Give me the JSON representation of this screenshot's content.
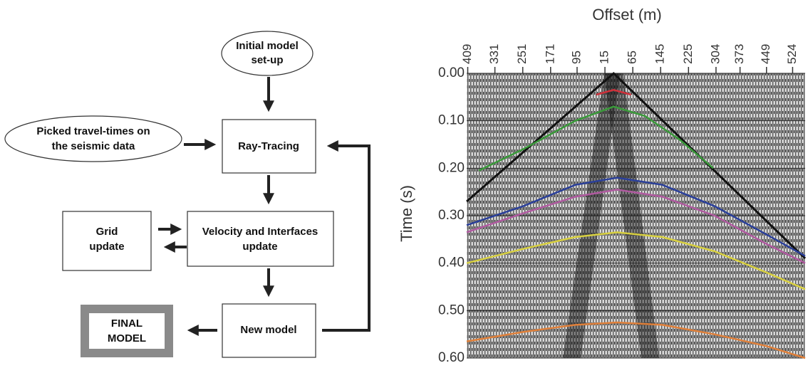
{
  "diagram": {
    "nodes": [
      {
        "lines": [
          "Initial model",
          "set-up"
        ]
      },
      {
        "lines": [
          "Picked travel-times on",
          "the seismic data"
        ]
      },
      {
        "lines": [
          "Ray-Tracing"
        ]
      },
      {
        "lines": [
          "Grid",
          "update"
        ]
      },
      {
        "lines": [
          "Velocity and Interfaces",
          "update"
        ]
      },
      {
        "lines": [
          "New model"
        ]
      },
      {
        "lines": [
          "FINAL",
          "MODEL"
        ]
      }
    ]
  },
  "chart_data": {
    "type": "line",
    "xlabel": "Offset (m)",
    "ylabel": "Time (s)",
    "xlim": [
      -412,
      560
    ],
    "ylim": [
      0,
      0.6
    ],
    "y_inverted": true,
    "xticks": [
      {
        "value": -409,
        "label": "409"
      },
      {
        "value": -331,
        "label": "331"
      },
      {
        "value": -251,
        "label": "251"
      },
      {
        "value": -171,
        "label": "171"
      },
      {
        "value": -95,
        "label": "95"
      },
      {
        "value": -15,
        "label": "15"
      },
      65,
      145,
      225,
      304,
      373,
      449,
      524
    ],
    "yticks": [
      {
        "value": 0,
        "label": "0.00"
      },
      {
        "value": 0.1,
        "label": "0.10"
      },
      {
        "value": 0.2,
        "label": "0.20"
      },
      {
        "value": 0.3,
        "label": "0.30"
      },
      {
        "value": 0.4,
        "label": "0.40"
      },
      {
        "value": 0.5,
        "label": "0.50"
      },
      {
        "value": 0.6,
        "label": "0.60"
      }
    ],
    "grid": true,
    "series": [
      {
        "color": "#111111",
        "x": [
          -412,
          10,
          560
        ],
        "values": [
          0.27,
          0.0,
          0.39
        ]
      },
      {
        "color": "#d0303a",
        "x": [
          -40,
          10,
          60
        ],
        "values": [
          0.045,
          0.035,
          0.045
        ]
      },
      {
        "color": "#3a9a3a",
        "x": [
          -377,
          -250,
          -100,
          10,
          100,
          200,
          296
        ],
        "values": [
          0.205,
          0.16,
          0.1,
          0.07,
          0.09,
          0.14,
          0.2
        ]
      },
      {
        "color": "#2a3f9a",
        "x": [
          -412,
          -250,
          -100,
          20,
          150,
          300,
          450,
          560
        ],
        "values": [
          0.32,
          0.28,
          0.235,
          0.22,
          0.235,
          0.28,
          0.34,
          0.385
        ]
      },
      {
        "color": "#b05aa0",
        "x": [
          -412,
          -250,
          -100,
          20,
          150,
          300,
          450,
          560
        ],
        "values": [
          0.335,
          0.295,
          0.26,
          0.245,
          0.26,
          0.3,
          0.36,
          0.4
        ]
      },
      {
        "color": "#d8d040",
        "x": [
          -412,
          -250,
          -100,
          20,
          150,
          300,
          450,
          560
        ],
        "values": [
          0.4,
          0.37,
          0.345,
          0.335,
          0.345,
          0.375,
          0.42,
          0.455
        ]
      },
      {
        "color": "#e0803a",
        "x": [
          -412,
          -250,
          -100,
          20,
          150,
          300,
          450,
          560
        ],
        "values": [
          0.565,
          0.545,
          0.53,
          0.525,
          0.53,
          0.55,
          0.575,
          0.6
        ]
      }
    ]
  }
}
